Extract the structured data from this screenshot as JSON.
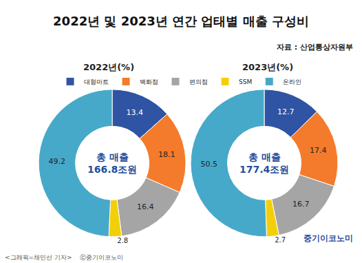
{
  "title": "2022년 및 2023년 연간 업태별 매출 구성비",
  "source": "자료 : 산업통상자원부",
  "credits": [
    "<그래픽=채민선 기자>",
    "ⓒ중기이코노미"
  ],
  "logo": "중기이코노미",
  "chart_data": [
    {
      "type": "pie",
      "title": "2022년(%)",
      "categories": [
        "대형마트",
        "백화점",
        "편의점",
        "SSM",
        "온라인"
      ],
      "values": [
        13.4,
        18.1,
        16.4,
        2.8,
        49.2
      ],
      "colors": [
        "#2f54a3",
        "#f47b2b",
        "#a5a5a5",
        "#f3cf0a",
        "#47a9c9"
      ],
      "center_text": [
        "총 매출",
        "166.8조원"
      ],
      "data_labels": true,
      "legend": "top"
    },
    {
      "type": "pie",
      "title": "2023년(%)",
      "categories": [
        "대형마트",
        "백화점",
        "편의점",
        "SSM",
        "온라인"
      ],
      "values": [
        12.7,
        17.4,
        16.7,
        2.7,
        50.5
      ],
      "colors": [
        "#2f54a3",
        "#f47b2b",
        "#a5a5a5",
        "#f3cf0a",
        "#47a9c9"
      ],
      "center_text": [
        "총 매출",
        "177.4조원"
      ],
      "data_labels": true,
      "legend": "top"
    }
  ]
}
